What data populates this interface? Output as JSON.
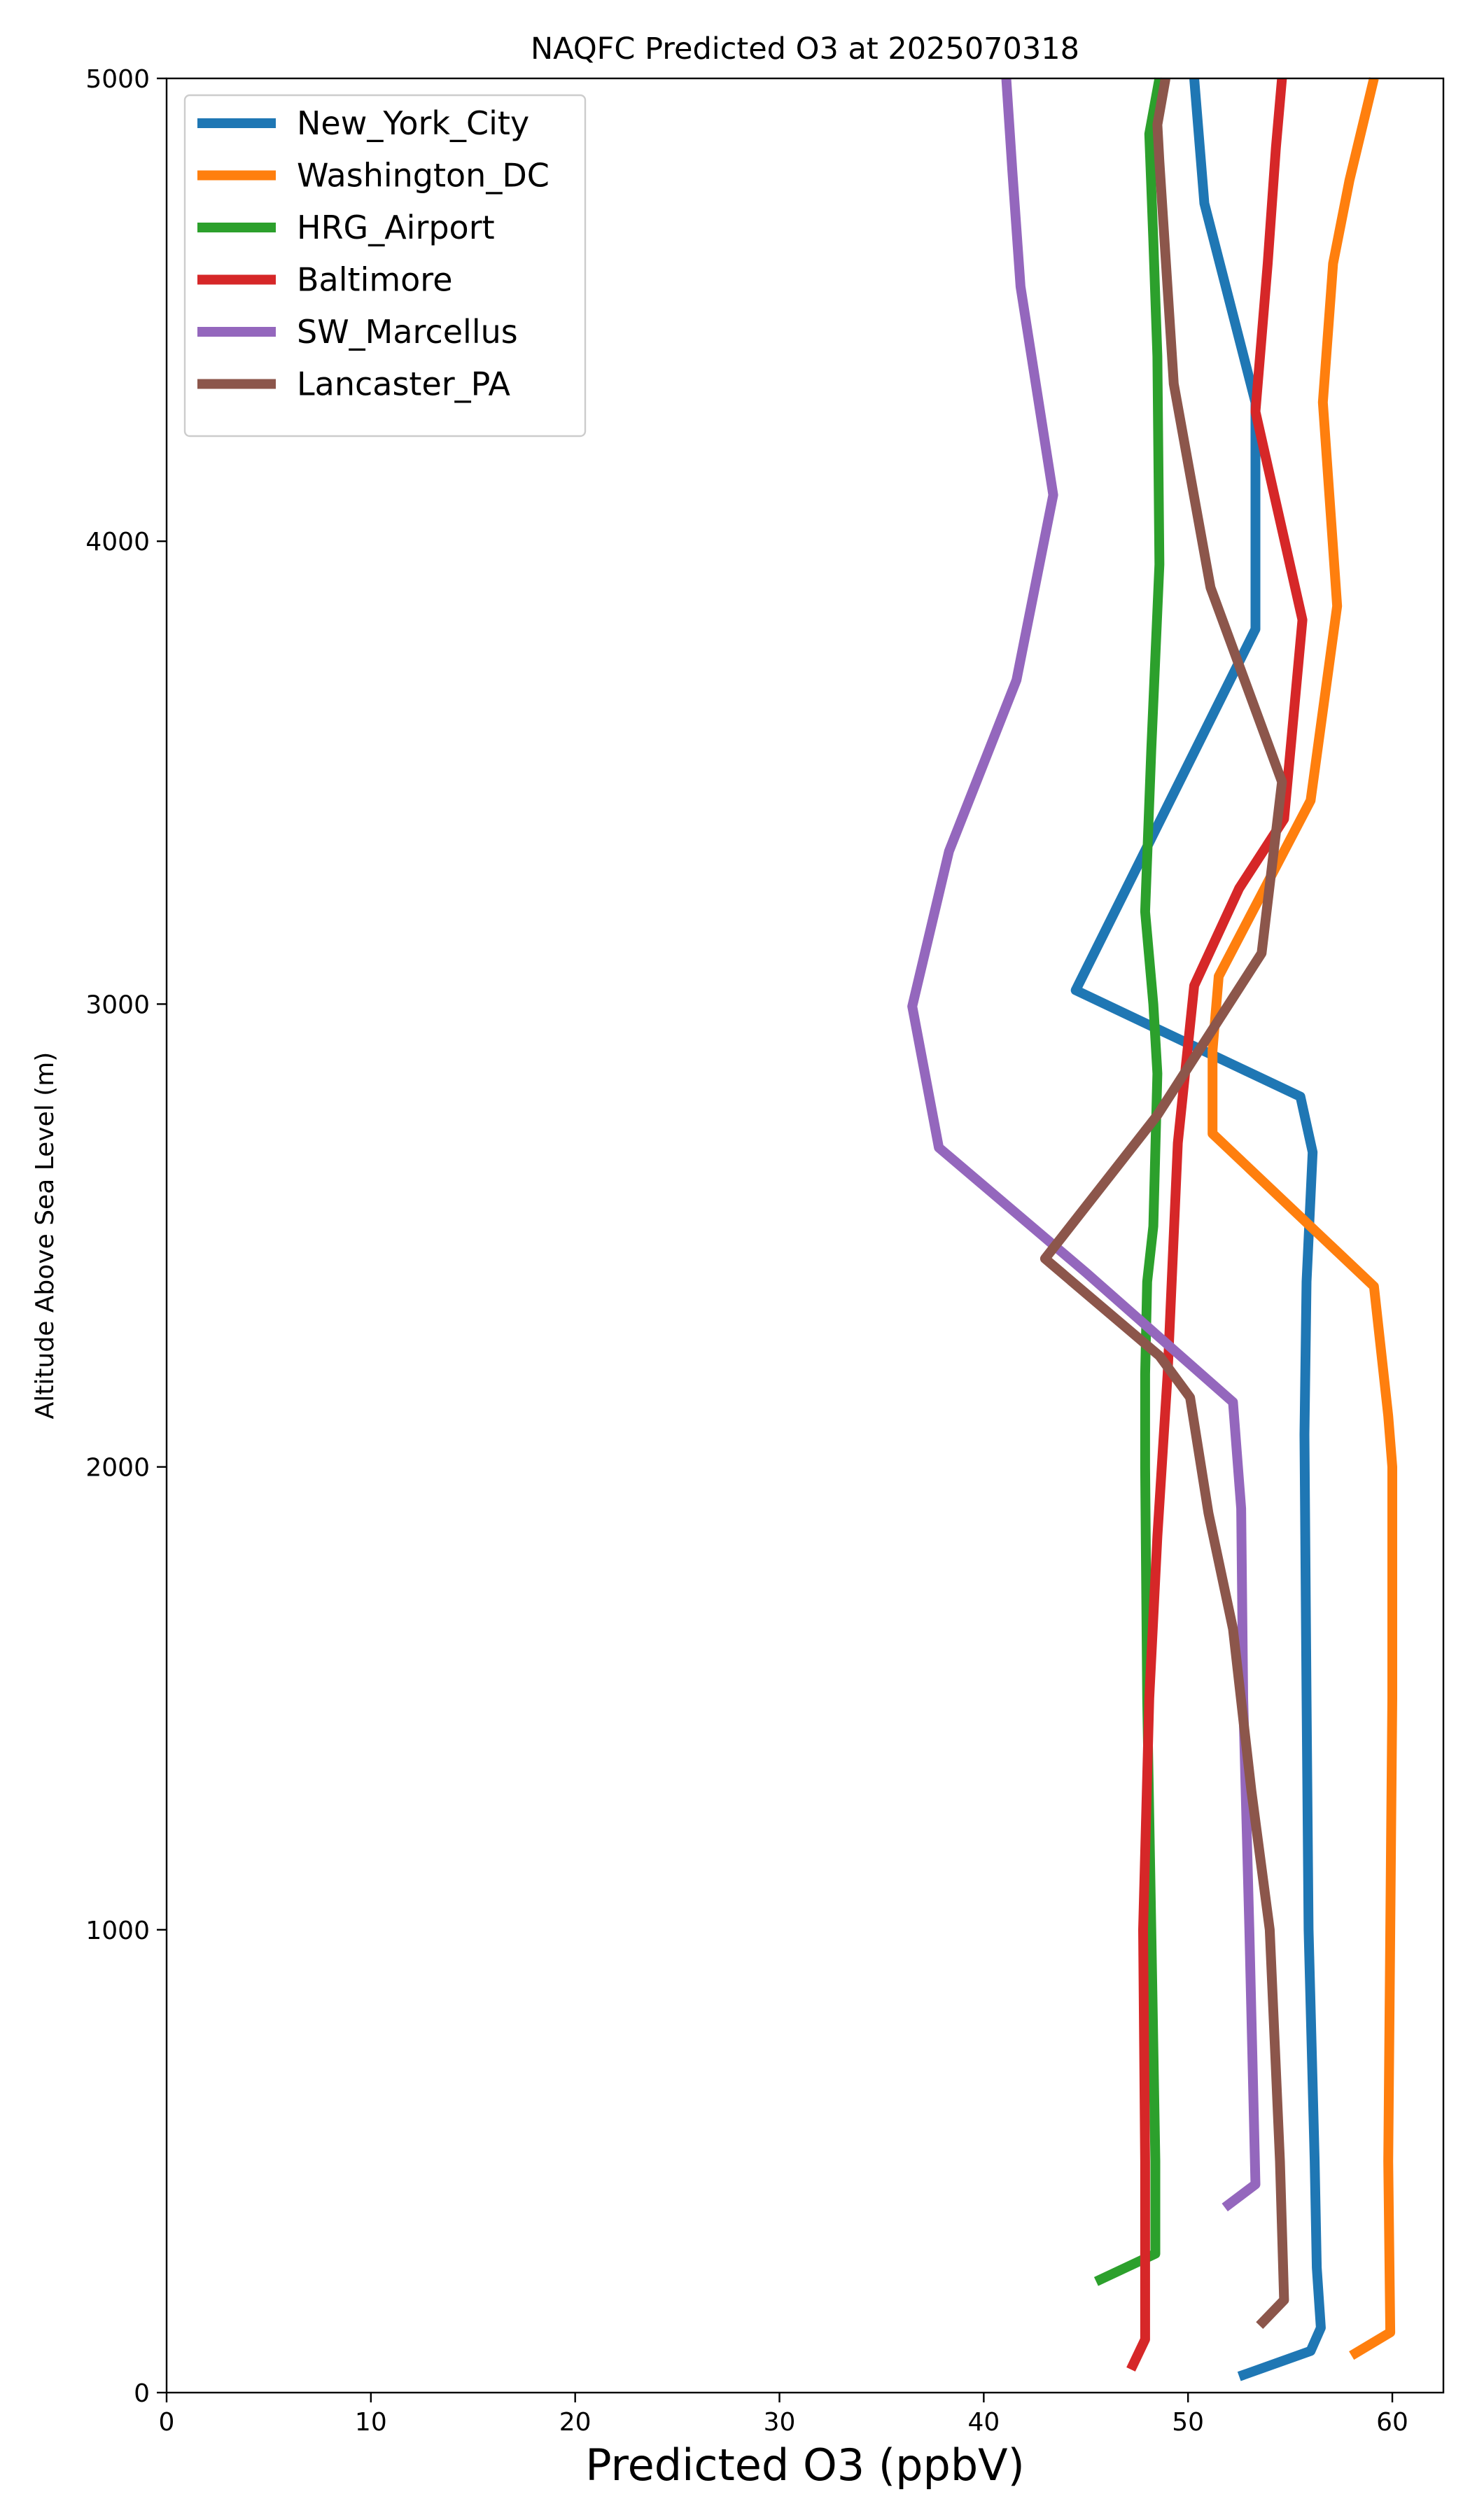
{
  "chart_data": {
    "type": "line",
    "title": "NAQFC Predicted O3 at 2025070318",
    "xlabel": "Predicted O3 (ppbV)",
    "ylabel": "Altitude Above Sea Level (m)",
    "xlim": [
      0,
      62.5
    ],
    "ylim": [
      0,
      5000
    ],
    "x_ticks": [
      0,
      10,
      20,
      30,
      40,
      50,
      60
    ],
    "y_ticks": [
      0,
      1000,
      2000,
      3000,
      4000,
      5000
    ],
    "grid": false,
    "legend_position": "top-left",
    "series": [
      {
        "name": "New_York_City",
        "color": "#1f77b4",
        "x": [
          52.5,
          56.0,
          56.5,
          56.3,
          56.2,
          55.9,
          55.8,
          55.7,
          55.8,
          56.1,
          55.5,
          44.5,
          53.3,
          53.3,
          53.3,
          50.8,
          50.3
        ],
        "y": [
          35,
          90,
          140,
          270,
          500,
          1000,
          1500,
          2070,
          2400,
          2680,
          2800,
          3030,
          3810,
          4000,
          4300,
          4730,
          5000
        ]
      },
      {
        "name": "Washington_DC",
        "color": "#ff7f0e",
        "x": [
          58.0,
          59.9,
          59.8,
          59.9,
          60.0,
          60.0,
          59.8,
          59.1,
          51.2,
          51.2,
          51.5,
          56.0,
          57.3,
          56.6,
          57.1,
          57.9,
          59.1
        ],
        "y": [
          80,
          130,
          500,
          1000,
          1500,
          2000,
          2110,
          2390,
          2720,
          2900,
          3060,
          3440,
          3860,
          4300,
          4600,
          4780,
          5000
        ]
      },
      {
        "name": "HRG_Airport",
        "color": "#2ca02c",
        "x": [
          45.5,
          48.4,
          48.4,
          48.2,
          48.0,
          47.9,
          47.9,
          48.0,
          48.3,
          48.5,
          48.3,
          47.9,
          48.2,
          48.6,
          48.5,
          48.3,
          48.1,
          48.6
        ],
        "y": [
          240,
          300,
          500,
          1000,
          1500,
          2000,
          2200,
          2400,
          2520,
          2850,
          3000,
          3200,
          3550,
          3950,
          4400,
          4650,
          4880,
          5000
        ]
      },
      {
        "name": "Baltimore",
        "color": "#d62728",
        "x": [
          47.2,
          47.9,
          47.9,
          47.8,
          48.1,
          48.5,
          49.0,
          49.5,
          50.3,
          52.5,
          54.7,
          55.6,
          53.3,
          53.9,
          54.3,
          54.6
        ],
        "y": [
          50,
          115,
          500,
          1000,
          1500,
          1850,
          2200,
          2700,
          3040,
          3250,
          3400,
          3830,
          4280,
          4600,
          4850,
          5000
        ]
      },
      {
        "name": "SW_Marcellus",
        "color": "#9467bd",
        "x": [
          51.8,
          53.3,
          53.0,
          52.7,
          52.6,
          52.2,
          45.0,
          37.8,
          36.5,
          38.3,
          41.6,
          43.4,
          41.8,
          41.4,
          41.1
        ],
        "y": [
          400,
          450,
          1000,
          1500,
          1910,
          2140,
          2420,
          2690,
          2995,
          3330,
          3700,
          4100,
          4550,
          4800,
          5000
        ]
      },
      {
        "name": "Lancaster_PA",
        "color": "#8c564b",
        "x": [
          53.5,
          54.7,
          54.5,
          54.0,
          53.1,
          52.2,
          51.0,
          50.1,
          48.6,
          43.0,
          48.5,
          53.6,
          54.6,
          51.1,
          49.3,
          48.6,
          48.5,
          48.9
        ],
        "y": [
          145,
          200,
          500,
          1000,
          1300,
          1650,
          1900,
          2150,
          2240,
          2450,
          2760,
          3110,
          3480,
          3900,
          4340,
          4820,
          4900,
          5000
        ]
      }
    ]
  }
}
